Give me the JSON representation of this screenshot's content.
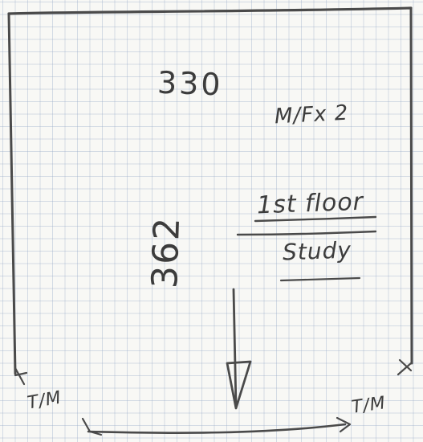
{
  "sketch": {
    "width_dimension": "330",
    "length_dimension": "362",
    "room_code": "M/Fx 2",
    "floor_level": "1st floor",
    "room_name": "Study",
    "corner_label_left": "T/M",
    "corner_label_right": "T/M",
    "arrow_direction": "down"
  }
}
